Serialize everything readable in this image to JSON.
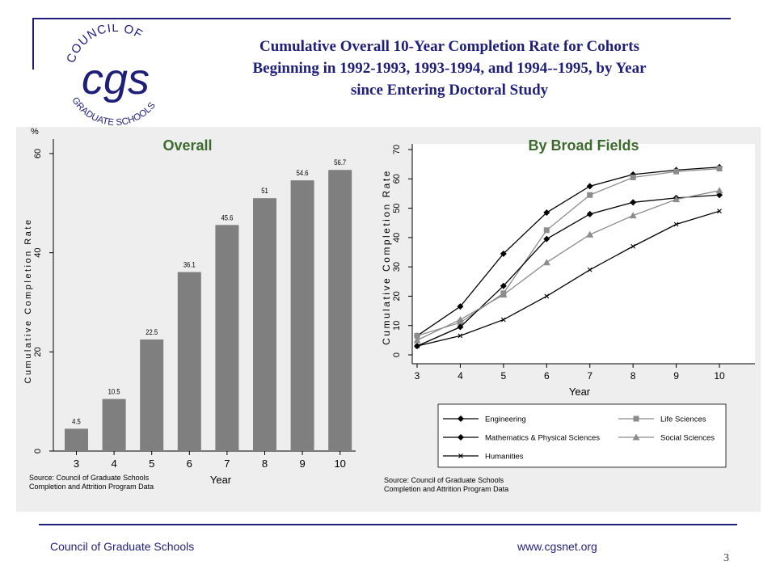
{
  "slide": {
    "title_line1": "Cumulative Overall 10-Year Completion Rate for Cohorts",
    "title_line2": "Beginning in 1992-1993, 1993-1994, and 1994--1995, by Year",
    "title_line3": "since Entering Doctoral Study",
    "footer_org": "Council of Graduate Schools",
    "footer_url": "www.cgsnet.org",
    "page_number": "3",
    "logo": {
      "text_top": "COUNCIL OF",
      "monogram": "cgs",
      "text_bottom": "GRADUATE SCHOOLS"
    },
    "colors": {
      "navy": "#1f1f7a",
      "green_label": "#3d6b2e",
      "bar": "#7f7f7f"
    }
  },
  "chart_data": [
    {
      "type": "bar",
      "title": "Overall",
      "unit_label": "%",
      "xlabel": "Year",
      "ylabel": "Cumulative Completion Rate",
      "categories": [
        "3",
        "4",
        "5",
        "6",
        "7",
        "8",
        "9",
        "10"
      ],
      "values": [
        4.5,
        10.5,
        22.5,
        36.1,
        45.6,
        51,
        54.6,
        56.7
      ],
      "value_labels": [
        "4.5",
        "10.5",
        "22.5",
        "36.1",
        "45.6",
        "51",
        "54.6",
        "56.7"
      ],
      "ylim": [
        0,
        60
      ],
      "yticks": [
        "0",
        "20",
        "40",
        "60"
      ],
      "source_line1": "Source: Council of Graduate Schools",
      "source_line2": "Completion and Attrition Program Data"
    },
    {
      "type": "line",
      "title": "By Broad Fields",
      "xlabel": "Year",
      "ylabel": "Cumulative Completion Rate",
      "x": [
        3,
        4,
        5,
        6,
        7,
        8,
        9,
        10
      ],
      "xticks": [
        "3",
        "4",
        "5",
        "6",
        "7",
        "8",
        "9",
        "10"
      ],
      "ylim": [
        0,
        70
      ],
      "yticks": [
        "0",
        "10",
        "20",
        "30",
        "40",
        "50",
        "60",
        "70"
      ],
      "legend_position": "bottom",
      "series": [
        {
          "name": "Engineering",
          "values": [
            6.5,
            16.5,
            34.5,
            48.5,
            57.5,
            61.5,
            63,
            64
          ],
          "marker": "diamond",
          "color": "#000000"
        },
        {
          "name": "Life Sciences",
          "values": [
            6.5,
            11,
            21,
            42.5,
            54.5,
            60.5,
            62.5,
            63.5
          ],
          "marker": "square",
          "color": "#8c8c8c"
        },
        {
          "name": "Mathematics & Physical Sciences",
          "values": [
            3,
            9.5,
            23.5,
            39.5,
            48,
            52,
            53.5,
            54.5
          ],
          "marker": "diamond",
          "color": "#000000"
        },
        {
          "name": "Social Sciences",
          "values": [
            5,
            12,
            20.5,
            31.5,
            41,
            47.5,
            53,
            56
          ],
          "marker": "triangle",
          "color": "#8c8c8c"
        },
        {
          "name": "Humanities",
          "values": [
            3,
            6.5,
            12,
            20,
            29,
            37,
            44.5,
            49
          ],
          "marker": "x",
          "color": "#000000"
        }
      ],
      "source_line1": "Source: Council of Graduate Schools",
      "source_line2": "Completion and Attrition Program Data"
    }
  ]
}
